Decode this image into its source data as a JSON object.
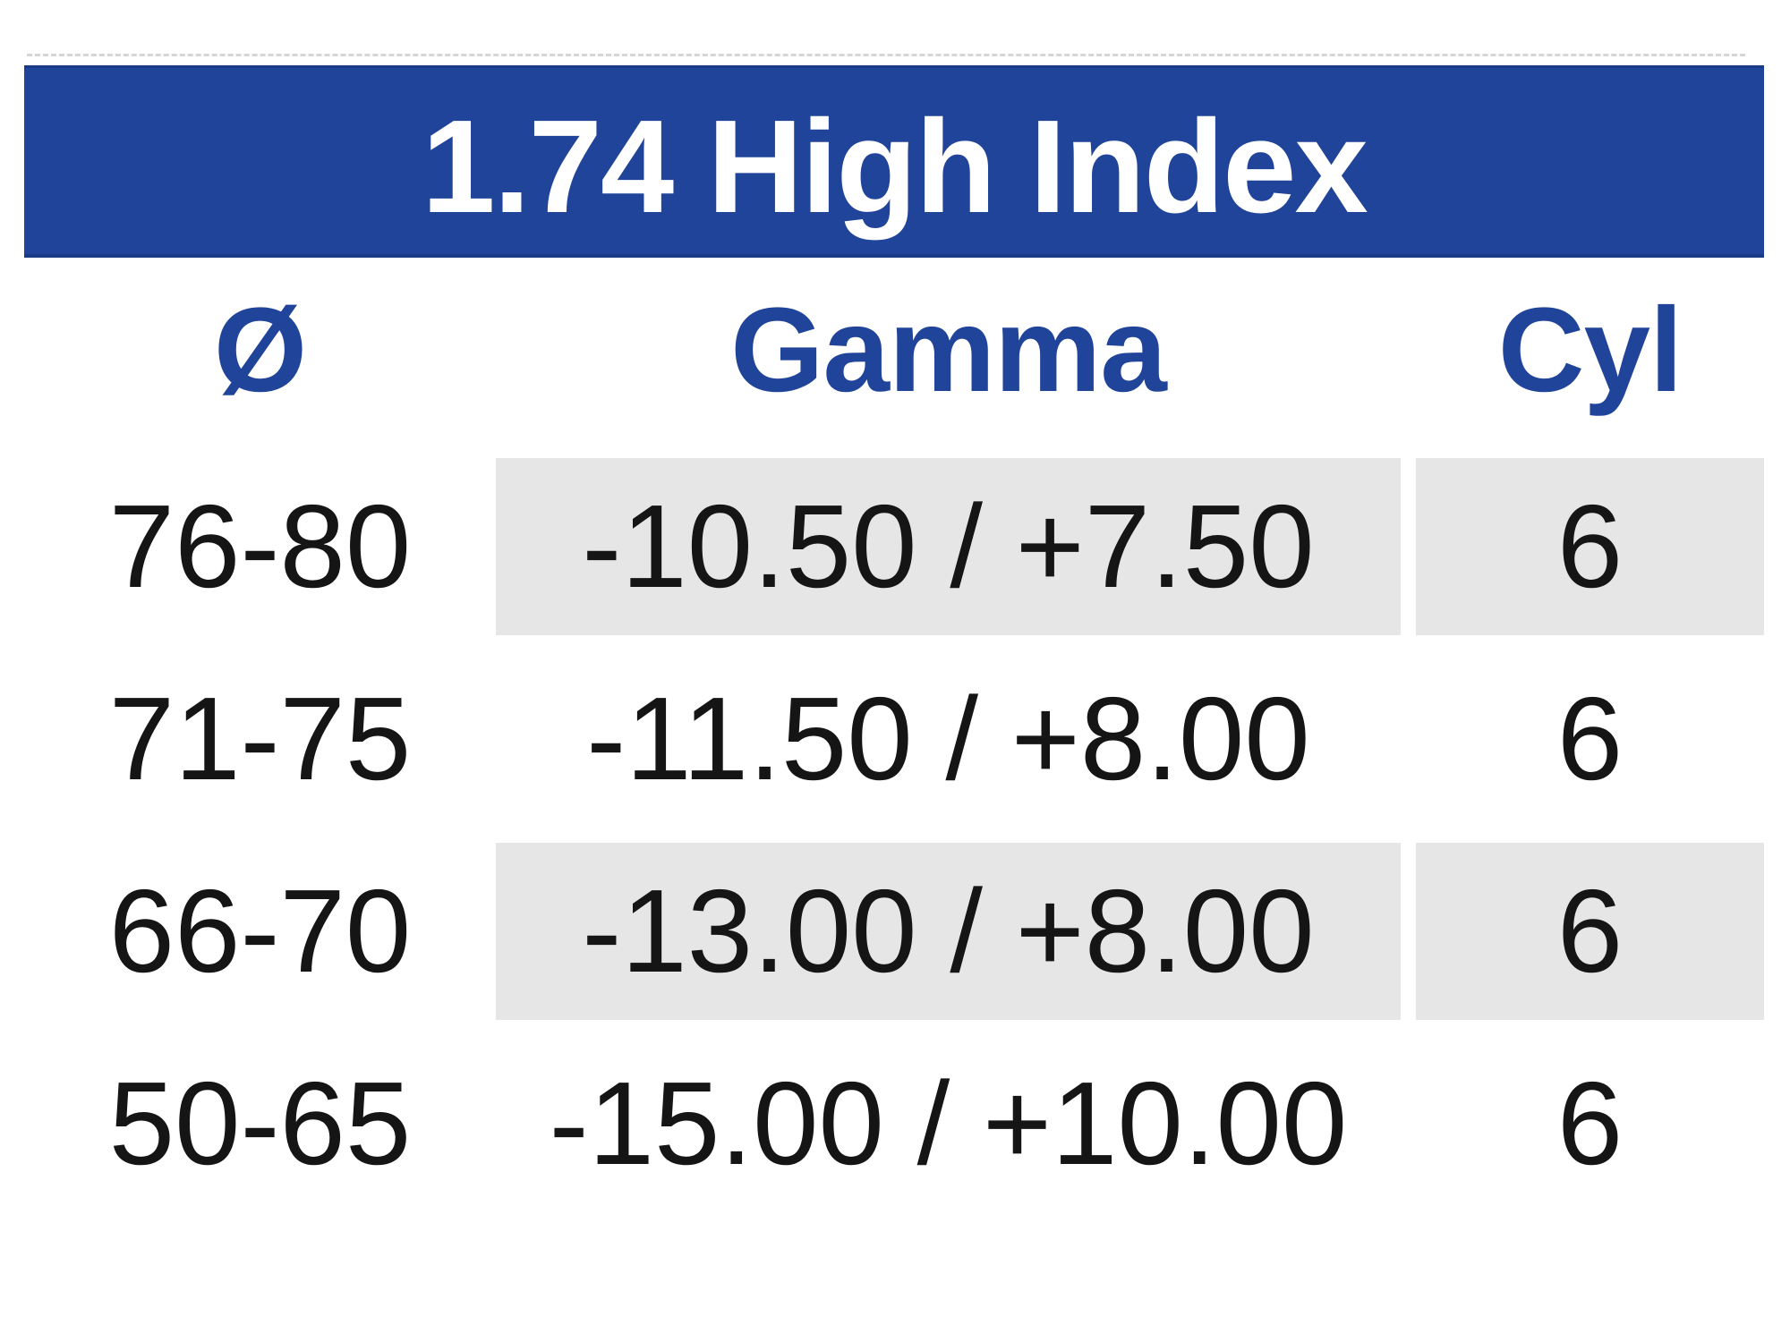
{
  "title": "1.74 High Index",
  "colors": {
    "banner_blue": "#21449B",
    "banner_edge": "#1B3A86",
    "header_text_blue": "#21449B",
    "row_shade_gray": "#E6E6E6",
    "data_text": "#151515",
    "top_rule_gray": "#D6D6D6"
  },
  "table": {
    "columns": [
      {
        "key": "diameter",
        "label": "Ø"
      },
      {
        "key": "gamma",
        "label": "Gamma"
      },
      {
        "key": "cyl",
        "label": "Cyl"
      }
    ],
    "rows": [
      {
        "diameter": "76-80",
        "gamma": "-10.50 / +7.50",
        "cyl": "6",
        "shaded": true
      },
      {
        "diameter": "71-75",
        "gamma": "-11.50 / +8.00",
        "cyl": "6",
        "shaded": false
      },
      {
        "diameter": "66-70",
        "gamma": "-13.00 / +8.00",
        "cyl": "6",
        "shaded": true
      },
      {
        "diameter": "50-65",
        "gamma": "-15.00 / +10.00",
        "cyl": "6",
        "shaded": false
      }
    ]
  }
}
